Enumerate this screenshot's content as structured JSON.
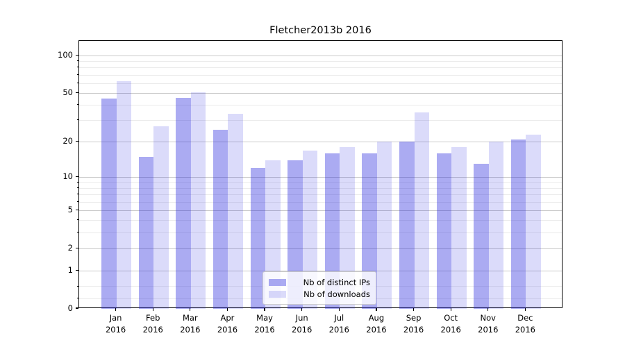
{
  "title": "Fletcher2013b 2016",
  "chart_data": {
    "type": "bar",
    "title": "Fletcher2013b 2016",
    "categories": [
      "Jan 2016",
      "Feb 2016",
      "Mar 2016",
      "Apr 2016",
      "May 2016",
      "Jun 2016",
      "Jul 2016",
      "Aug 2016",
      "Sep 2016",
      "Oct 2016",
      "Nov 2016",
      "Dec 2016"
    ],
    "series": [
      {
        "name": "Nb of distinct IPs",
        "color": "rgba(34,34,221,0.38)",
        "solid_color": "#a7a7f0",
        "values": [
          45,
          15,
          46,
          25,
          12,
          14,
          16,
          16,
          20,
          16,
          13,
          21
        ]
      },
      {
        "name": "Nb of downloads",
        "color": "rgba(34,34,221,0.16)",
        "solid_color": "#d9d9f8",
        "values": [
          62,
          27,
          51,
          34,
          14,
          17,
          18,
          20,
          35,
          18,
          20,
          23
        ]
      }
    ],
    "xlabel": "",
    "ylabel": "",
    "yscale": "log1p",
    "ylim": [
      0,
      130
    ],
    "yticks": [
      0,
      1,
      2,
      5,
      10,
      20,
      50,
      100
    ],
    "ytick_labels": [
      "0",
      "1",
      "2",
      "5",
      "10",
      "20",
      "50",
      "100"
    ],
    "minor_gridlines": [
      0.2,
      0.5,
      3,
      4,
      6,
      7,
      8,
      9,
      30,
      40,
      60,
      70,
      80,
      90
    ],
    "grid": true,
    "legend_position": "lower center",
    "grid_major_color": "#c9c9c9",
    "grid_minor_color": "#ebebeb",
    "spine_color": "#000000"
  }
}
